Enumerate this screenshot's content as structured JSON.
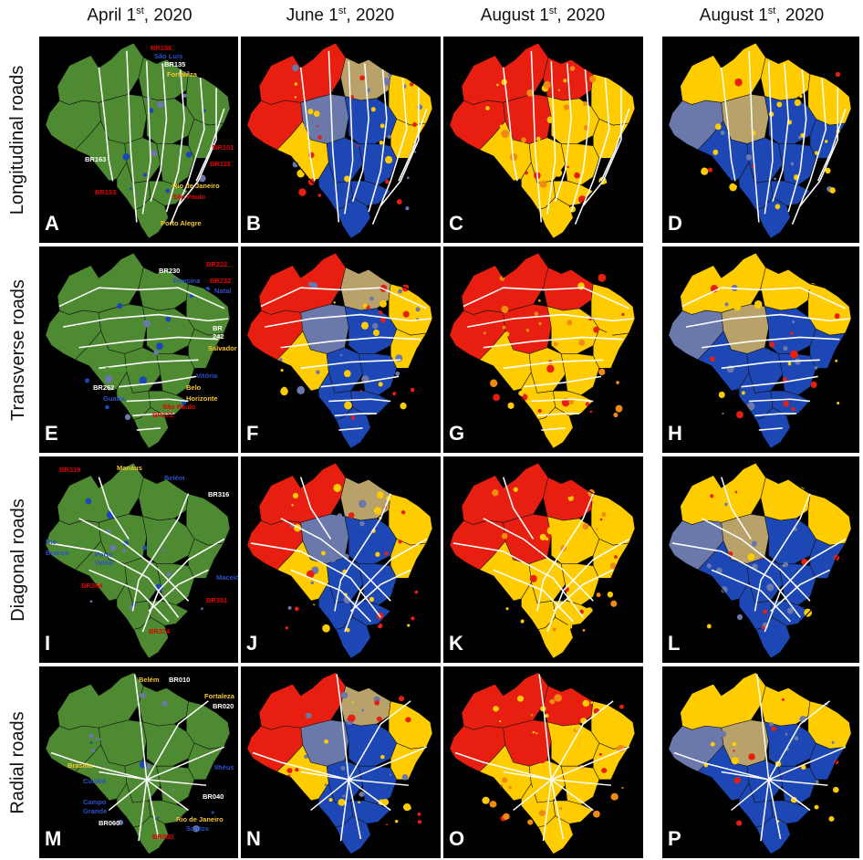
{
  "headers": [
    {
      "text": "April 1",
      "sup": "st",
      "tail": ", 2020"
    },
    {
      "text": "June 1",
      "sup": "st",
      "tail": ", 2020"
    },
    {
      "text": "August 1",
      "sup": "st",
      "tail": ", 2020"
    },
    {
      "text": "August 1",
      "sup": "st",
      "tail": ", 2020"
    }
  ],
  "rows": [
    {
      "label": "Longitudinal roads",
      "letters": [
        "A",
        "B",
        "C",
        "D"
      ]
    },
    {
      "label": "Transverse roads",
      "letters": [
        "E",
        "F",
        "G",
        "H"
      ]
    },
    {
      "label": "Diagonal roads",
      "letters": [
        "I",
        "J",
        "K",
        "L"
      ]
    },
    {
      "label": "Radial roads",
      "letters": [
        "M",
        "N",
        "O",
        "P"
      ]
    }
  ],
  "colors": {
    "background": "#000000",
    "land_green": "#4e8a32",
    "slate": "#6a78aa",
    "blue": "#1d47b4",
    "yellow": "#ffcc00",
    "tan": "#b8a26a",
    "red": "#e81f10",
    "orange": "#f08a10",
    "road": "#ffffff",
    "label_red": "#e00000",
    "label_blue": "#2a50c8",
    "label_white": "#ffffff",
    "label_yellow": "#f4c430",
    "label_green": "#4e9a32"
  },
  "annotations": {
    "A": [
      {
        "text": "BR156",
        "color": "red"
      },
      {
        "text": "São Luís",
        "color": "blue"
      },
      {
        "text": "BR135",
        "color": "white"
      },
      {
        "text": "Fortaleza",
        "color": "yellow"
      },
      {
        "text": "BR101",
        "color": "red"
      },
      {
        "text": "BR116",
        "color": "red"
      },
      {
        "text": "BR163",
        "color": "white"
      },
      {
        "text": "BR153",
        "color": "red"
      },
      {
        "text": "Rio de Janeiro",
        "color": "yellow"
      },
      {
        "text": "São Paulo",
        "color": "red"
      },
      {
        "text": "Porto Alegre",
        "color": "yellow"
      }
    ],
    "E": [
      {
        "text": "BR230",
        "color": "white"
      },
      {
        "text": "BR222",
        "color": "red"
      },
      {
        "text": "Teresina",
        "color": "blue"
      },
      {
        "text": "BR232",
        "color": "red"
      },
      {
        "text": "Natal",
        "color": "blue"
      },
      {
        "text": "BR",
        "color": "white"
      },
      {
        "text": "242",
        "color": "white"
      },
      {
        "text": "Salvador",
        "color": "yellow"
      },
      {
        "text": "Corumbá",
        "color": "green"
      },
      {
        "text": "Vitória",
        "color": "blue"
      },
      {
        "text": "BR262",
        "color": "white"
      },
      {
        "text": "Belo",
        "color": "yellow"
      },
      {
        "text": "Horizonte",
        "color": "yellow"
      },
      {
        "text": "Guaíra",
        "color": "blue"
      },
      {
        "text": "São Paulo",
        "color": "red"
      },
      {
        "text": "BR272",
        "color": "red"
      }
    ],
    "I": [
      {
        "text": "BR319",
        "color": "red"
      },
      {
        "text": "Manaus",
        "color": "yellow"
      },
      {
        "text": "Belém",
        "color": "blue"
      },
      {
        "text": "BR316",
        "color": "white"
      },
      {
        "text": "Rio",
        "color": "blue"
      },
      {
        "text": "Branco",
        "color": "blue"
      },
      {
        "text": "Porto",
        "color": "blue"
      },
      {
        "text": "Velho",
        "color": "blue"
      },
      {
        "text": "Maceió",
        "color": "blue"
      },
      {
        "text": "BR364",
        "color": "red"
      },
      {
        "text": "BR381",
        "color": "red"
      },
      {
        "text": "BR374",
        "color": "red"
      }
    ],
    "M": [
      {
        "text": "Belém",
        "color": "yellow"
      },
      {
        "text": "BR010",
        "color": "white"
      },
      {
        "text": "Fortaleza",
        "color": "yellow"
      },
      {
        "text": "BR020",
        "color": "white"
      },
      {
        "text": "Brasília",
        "color": "yellow"
      },
      {
        "text": "Ilhéus",
        "color": "blue"
      },
      {
        "text": "Cuiabá",
        "color": "blue"
      },
      {
        "text": "BR040",
        "color": "white"
      },
      {
        "text": "Campo",
        "color": "blue"
      },
      {
        "text": "Grande",
        "color": "blue"
      },
      {
        "text": "Rio de Janeiro",
        "color": "yellow"
      },
      {
        "text": "BR060",
        "color": "white"
      },
      {
        "text": "Santos",
        "color": "blue"
      },
      {
        "text": "BR050",
        "color": "red"
      }
    ]
  }
}
